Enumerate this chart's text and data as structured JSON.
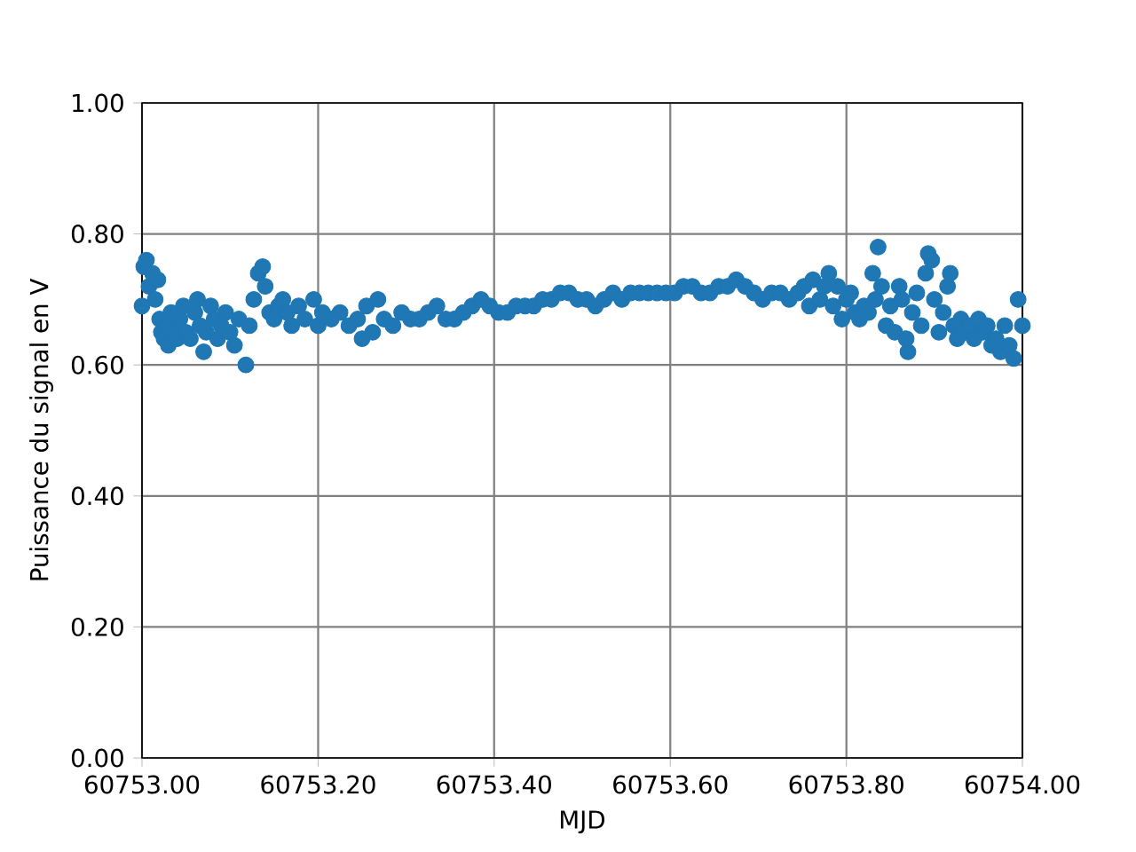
{
  "chart_data": {
    "type": "scatter",
    "xlabel": "MJD",
    "ylabel": "Puissance du signal en V",
    "color": "#1f77b4",
    "marker": "circle",
    "grid": true,
    "xlim": [
      60753.0,
      60754.0
    ],
    "xticks": [
      {
        "value": 60753.0,
        "label": "60753.00"
      },
      {
        "value": 60753.2,
        "label": "60753.20"
      },
      {
        "value": 60753.4,
        "label": "60753.40"
      },
      {
        "value": 60753.6,
        "label": "60753.60"
      },
      {
        "value": 60753.8,
        "label": "60753.80"
      },
      {
        "value": 60754.0,
        "label": "60754.00"
      }
    ],
    "ylim": [
      0.0,
      1.0
    ],
    "yticks": [
      {
        "value": 0.0,
        "label": "0.00"
      },
      {
        "value": 0.2,
        "label": "0.20"
      },
      {
        "value": 0.4,
        "label": "0.40"
      },
      {
        "value": 0.6,
        "label": "0.60"
      },
      {
        "value": 0.8,
        "label": "0.80"
      },
      {
        "value": 1.0,
        "label": "1.00"
      }
    ],
    "x": [
      60753.0,
      60753.002,
      60753.005,
      60753.008,
      60753.012,
      60753.015,
      60753.018,
      60753.02,
      60753.022,
      60753.025,
      60753.028,
      60753.03,
      60753.033,
      60753.036,
      60753.04,
      60753.043,
      60753.047,
      60753.05,
      60753.055,
      60753.06,
      60753.063,
      60753.066,
      60753.07,
      60753.073,
      60753.078,
      60753.082,
      60753.086,
      60753.09,
      60753.095,
      60753.1,
      60753.105,
      60753.11,
      60753.118,
      60753.122,
      60753.127,
      60753.132,
      60753.137,
      60753.14,
      60753.145,
      60753.15,
      60753.155,
      60753.16,
      60753.165,
      60753.17,
      60753.178,
      60753.185,
      60753.195,
      60753.2,
      60753.205,
      60753.215,
      60753.225,
      60753.235,
      60753.245,
      60753.25,
      60753.255,
      60753.262,
      60753.268,
      60753.275,
      60753.285,
      60753.295,
      60753.305,
      60753.315,
      60753.325,
      60753.335,
      60753.345,
      60753.355,
      60753.365,
      60753.375,
      60753.385,
      60753.395,
      60753.405,
      60753.415,
      60753.425,
      60753.435,
      60753.445,
      60753.455,
      60753.465,
      60753.475,
      60753.485,
      60753.495,
      60753.505,
      60753.515,
      60753.525,
      60753.535,
      60753.545,
      60753.555,
      60753.565,
      60753.575,
      60753.585,
      60753.595,
      60753.605,
      60753.615,
      60753.625,
      60753.635,
      60753.645,
      60753.655,
      60753.665,
      60753.675,
      60753.685,
      60753.695,
      60753.705,
      60753.715,
      60753.725,
      60753.735,
      60753.745,
      60753.752,
      60753.758,
      60753.762,
      60753.77,
      60753.775,
      60753.78,
      60753.785,
      60753.79,
      60753.795,
      60753.8,
      60753.805,
      60753.81,
      60753.815,
      60753.82,
      60753.825,
      60753.83,
      60753.833,
      60753.836,
      60753.84,
      60753.845,
      60753.85,
      60753.855,
      60753.86,
      60753.863,
      60753.868,
      60753.87,
      60753.875,
      60753.88,
      60753.885,
      60753.89,
      60753.893,
      60753.897,
      60753.9,
      60753.905,
      60753.91,
      60753.915,
      60753.918,
      60753.922,
      60753.926,
      60753.93,
      60753.935,
      60753.94,
      60753.945,
      60753.95,
      60753.955,
      60753.96,
      60753.965,
      60753.97,
      60753.975,
      60753.98,
      60753.985,
      60753.99,
      60753.995,
      60754.0
    ],
    "values": [
      0.69,
      0.75,
      0.76,
      0.72,
      0.74,
      0.7,
      0.73,
      0.67,
      0.65,
      0.64,
      0.66,
      0.63,
      0.68,
      0.65,
      0.64,
      0.67,
      0.69,
      0.65,
      0.64,
      0.68,
      0.7,
      0.66,
      0.62,
      0.65,
      0.69,
      0.67,
      0.64,
      0.66,
      0.68,
      0.65,
      0.63,
      0.67,
      0.6,
      0.66,
      0.7,
      0.74,
      0.75,
      0.72,
      0.68,
      0.67,
      0.69,
      0.7,
      0.68,
      0.66,
      0.69,
      0.67,
      0.7,
      0.66,
      0.68,
      0.67,
      0.68,
      0.66,
      0.67,
      0.64,
      0.69,
      0.65,
      0.7,
      0.67,
      0.66,
      0.68,
      0.67,
      0.67,
      0.68,
      0.69,
      0.67,
      0.67,
      0.68,
      0.69,
      0.7,
      0.69,
      0.68,
      0.68,
      0.69,
      0.69,
      0.69,
      0.7,
      0.7,
      0.71,
      0.71,
      0.7,
      0.7,
      0.69,
      0.7,
      0.71,
      0.7,
      0.71,
      0.71,
      0.71,
      0.71,
      0.71,
      0.71,
      0.72,
      0.72,
      0.71,
      0.71,
      0.72,
      0.72,
      0.73,
      0.72,
      0.71,
      0.7,
      0.71,
      0.71,
      0.7,
      0.71,
      0.72,
      0.69,
      0.73,
      0.7,
      0.72,
      0.74,
      0.69,
      0.72,
      0.67,
      0.7,
      0.71,
      0.68,
      0.67,
      0.69,
      0.68,
      0.74,
      0.7,
      0.78,
      0.72,
      0.66,
      0.69,
      0.65,
      0.72,
      0.7,
      0.64,
      0.62,
      0.68,
      0.71,
      0.66,
      0.74,
      0.77,
      0.76,
      0.7,
      0.65,
      0.68,
      0.72,
      0.74,
      0.66,
      0.64,
      0.67,
      0.65,
      0.66,
      0.64,
      0.67,
      0.65,
      0.66,
      0.63,
      0.64,
      0.62,
      0.66,
      0.63,
      0.61,
      0.7,
      0.66
    ]
  }
}
